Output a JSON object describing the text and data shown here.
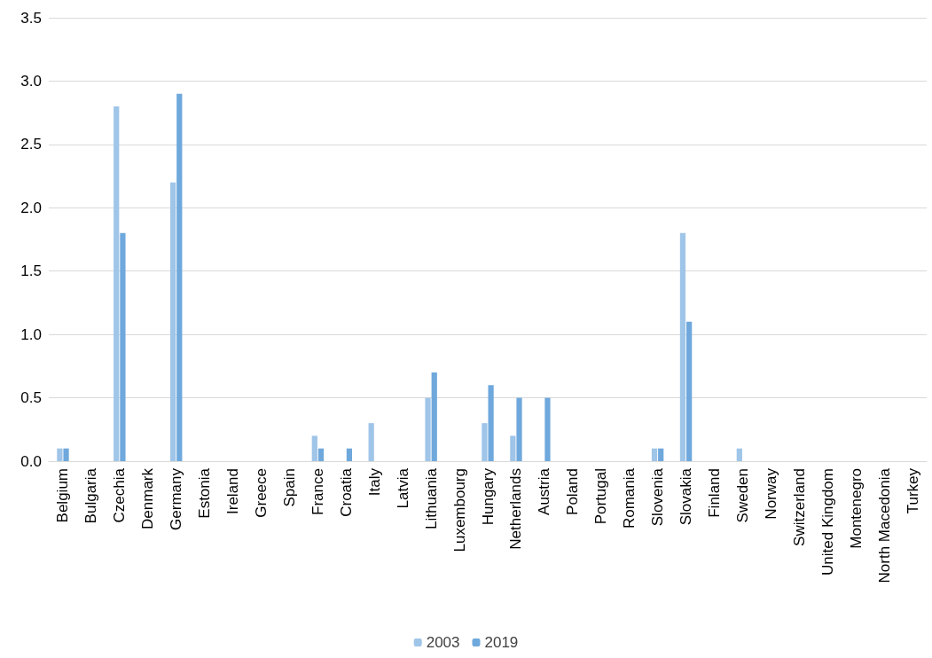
{
  "chart_data": {
    "type": "bar",
    "categories": [
      "Belgium",
      "Bulgaria",
      "Czechia",
      "Denmark",
      "Germany",
      "Estonia",
      "Ireland",
      "Greece",
      "Spain",
      "France",
      "Croatia",
      "Italy",
      "Latvia",
      "Lithuania",
      "Luxembourg",
      "Hungary",
      "Netherlands",
      "Austria",
      "Poland",
      "Portugal",
      "Romania",
      "Slovenia",
      "Slovakia",
      "Finland",
      "Sweden",
      "Norway",
      "Switzerland",
      "United Kingdom",
      "Montenegro",
      "North Macedonia",
      "Turkey"
    ],
    "series": [
      {
        "name": "2003",
        "color": "#9fc5e8",
        "values": [
          0.1,
          0,
          2.8,
          0,
          2.2,
          0,
          0,
          0,
          0,
          0.2,
          0,
          0.3,
          0,
          0.5,
          0,
          0.3,
          0.2,
          0,
          0,
          0,
          0,
          0.1,
          1.8,
          0,
          0.1,
          0,
          0,
          0,
          0,
          0,
          0
        ]
      },
      {
        "name": "2019",
        "color": "#6fa8dc",
        "values": [
          0.1,
          0,
          1.8,
          0,
          2.9,
          0,
          0,
          0,
          0,
          0.1,
          0.1,
          0,
          0,
          0.7,
          0,
          0.6,
          0.5,
          0.5,
          0,
          0,
          0,
          0.1,
          1.1,
          0,
          0,
          0,
          0,
          0,
          0,
          0,
          0
        ]
      }
    ],
    "ylim": [
      0,
      3.5
    ],
    "yticks": [
      {
        "value": 0,
        "label": "0.0"
      },
      {
        "value": 0.5,
        "label": "0.5"
      },
      {
        "value": 1,
        "label": "1.0"
      },
      {
        "value": 1.5,
        "label": "1.5"
      },
      {
        "value": 2,
        "label": "2.0"
      },
      {
        "value": 2.5,
        "label": "2.5"
      },
      {
        "value": 3,
        "label": "3.0"
      },
      {
        "value": 3.5,
        "label": "3.5"
      }
    ],
    "grid": "y",
    "legend": "bottom"
  }
}
